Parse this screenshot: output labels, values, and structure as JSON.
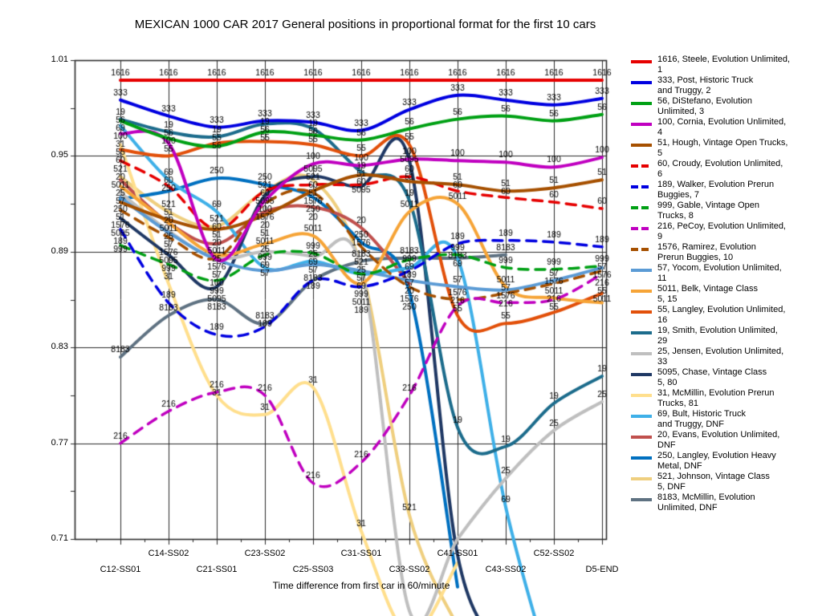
{
  "chart_data": {
    "type": "line",
    "title": "MEXICAN 1000 CAR 2017  General positions in proportional format for the first 10 cars",
    "xlabel": "Time difference from first car in 60/minute",
    "categories": [
      "C12-SS01",
      "C14-SS02",
      "C21-SS01",
      "C23-SS02",
      "C25-SS03",
      "C31-SS01",
      "C33-SS02",
      "C41-SS01",
      "C43-SS02",
      "C52-SS02",
      "D5-END"
    ],
    "ylim": [
      0.71,
      1.01
    ],
    "yticks": [
      1.01,
      0.95,
      0.89,
      0.83,
      0.77,
      0.71
    ],
    "grid": true,
    "legend_position": "right",
    "series": [
      {
        "name": "1616",
        "legend": [
          "1616, Steele, Evolution Unlimited,",
          "1"
        ],
        "color": "#e60000",
        "dash": false,
        "values": [
          0.9975,
          0.9975,
          0.9975,
          0.9975,
          0.9975,
          0.9975,
          0.9975,
          0.9975,
          0.9975,
          0.9975,
          0.9975
        ]
      },
      {
        "name": "333",
        "legend": [
          "333, Post, Historic Truck",
          "and Truggy, 2"
        ],
        "color": "#0000e0",
        "dash": false,
        "values": [
          0.985,
          0.975,
          0.968,
          0.972,
          0.971,
          0.966,
          0.979,
          0.988,
          0.985,
          0.982,
          0.986
        ]
      },
      {
        "name": "56",
        "legend": [
          "56, DiStefano, Evolution",
          "Unlimited, 3"
        ],
        "color": "#00a014",
        "dash": false,
        "values": [
          0.972,
          0.961,
          0.956,
          0.965,
          0.963,
          0.96,
          0.967,
          0.973,
          0.975,
          0.972,
          0.976
        ]
      },
      {
        "name": "100",
        "legend": [
          "100, Cornia, Evolution Unlimited,",
          "4"
        ],
        "color": "#c000c0",
        "dash": false,
        "values": [
          0.964,
          0.958,
          0.885,
          0.922,
          0.945,
          0.944,
          0.948,
          0.947,
          0.946,
          0.943,
          0.949
        ]
      },
      {
        "name": "51",
        "legend": [
          "51, Hough, Vintage Open Trucks,",
          "5"
        ],
        "color": "#a65000",
        "dash": false,
        "values": [
          0.921,
          0.91,
          0.904,
          0.913,
          0.928,
          0.938,
          0.934,
          0.932,
          0.928,
          0.93,
          0.935
        ]
      },
      {
        "name": "60",
        "legend": [
          "60, Croudy, Evolution Unlimited,",
          "6"
        ],
        "color": "#e60000",
        "dash": true,
        "values": [
          0.947,
          0.931,
          0.904,
          0.928,
          0.932,
          0.932,
          0.937,
          0.928,
          0.924,
          0.921,
          0.917
        ]
      },
      {
        "name": "189",
        "legend": [
          "189, Walker, Evolution Prerun",
          "Buggies, 7"
        ],
        "color": "#0000e0",
        "dash": true,
        "values": [
          0.904,
          0.858,
          0.838,
          0.843,
          0.872,
          0.868,
          0.878,
          0.895,
          0.897,
          0.896,
          0.893
        ]
      },
      {
        "name": "999",
        "legend": [
          "999, Gable, Vintage Open",
          "Trucks, 8"
        ],
        "color": "#00a014",
        "dash": true,
        "values": [
          0.894,
          0.882,
          0.872,
          0.888,
          0.889,
          0.876,
          0.885,
          0.888,
          0.88,
          0.879,
          0.881
        ]
      },
      {
        "name": "216",
        "legend": [
          "216, PeCoy, Evolution Unlimited,",
          "9"
        ],
        "color": "#c000c0",
        "dash": true,
        "values": [
          0.77,
          0.79,
          0.802,
          0.8,
          0.745,
          0.758,
          0.8,
          0.856,
          0.858,
          0.86,
          0.876
        ]
      },
      {
        "name": "1576",
        "legend": [
          "1576, Ramirez, Evolution",
          "Prerun Buggies, 10"
        ],
        "color": "#a65000",
        "dash": true,
        "values": [
          0.916,
          0.899,
          0.886,
          0.92,
          0.927,
          0.893,
          0.868,
          0.86,
          0.864,
          0.87,
          0.878
        ]
      },
      {
        "name": "57",
        "legend": [
          "57, Yocom, Evolution Unlimited,",
          "11"
        ],
        "color": "#5b9bd5",
        "dash": false,
        "values": [
          0.924,
          0.902,
          0.885,
          0.878,
          0.882,
          0.878,
          0.872,
          0.868,
          0.866,
          0.872,
          0.88
        ]
      },
      {
        "name": "5011",
        "legend": [
          "5011, Belk, Vintage Class",
          "5, 15"
        ],
        "color": "#f6a437",
        "dash": false,
        "values": [
          0.931,
          0.908,
          0.888,
          0.895,
          0.9,
          0.87,
          0.915,
          0.92,
          0.868,
          0.861,
          0.858
        ]
      },
      {
        "name": "55",
        "legend": [
          "55, Langley, Evolution Unlimited,",
          "16"
        ],
        "color": "#e2500a",
        "dash": false,
        "values": [
          0.954,
          0.95,
          0.958,
          0.959,
          0.957,
          0.95,
          0.957,
          0.85,
          0.845,
          0.852,
          0.864
        ]
      },
      {
        "name": "19",
        "legend": [
          "19, Smith, Evolution Unlimited,",
          "29"
        ],
        "color": "#1c6c8c",
        "dash": false,
        "values": [
          0.973,
          0.965,
          0.962,
          0.97,
          0.967,
          0.94,
          0.922,
          0.78,
          0.768,
          0.795,
          0.812
        ]
      },
      {
        "name": "25",
        "legend": [
          "25, Jensen, Evolution Unlimited,",
          "33"
        ],
        "color": "#bfbfbf",
        "dash": false,
        "values": [
          0.927,
          0.903,
          0.886,
          0.89,
          0.887,
          0.88,
          0.665,
          0.71,
          0.748,
          0.778,
          0.796
        ]
      },
      {
        "name": "5095",
        "legend": [
          "5095, Chase, Vintage Class",
          "5, 80"
        ],
        "color": "#1f3864",
        "dash": false,
        "values": [
          0.911,
          0.888,
          0.868,
          0.925,
          0.937,
          0.931,
          0.947,
          0.7,
          0.64,
          null,
          null
        ]
      },
      {
        "name": "31",
        "legend": [
          "31, McMillin, Evolution Prerun",
          "Trucks, 81"
        ],
        "color": "#ffdf8d",
        "dash": false,
        "values": [
          0.957,
          0.87,
          0.8,
          0.788,
          0.805,
          0.715,
          0.65,
          0.695,
          null,
          null,
          null
        ]
      },
      {
        "name": "69",
        "legend": [
          "69, Bult, Historic Truck",
          "and Truggy, DNF"
        ],
        "color": "#3fb0e8",
        "dash": false,
        "values": [
          0.969,
          0.935,
          0.915,
          0.88,
          0.884,
          0.876,
          0.88,
          0.886,
          0.73,
          0.62,
          null
        ]
      },
      {
        "name": "20",
        "legend": [
          "20, Evans, Evolution Unlimited,",
          "DNF"
        ],
        "color": "#c0504d",
        "dash": false,
        "values": [
          0.935,
          0.908,
          0.895,
          0.915,
          0.918,
          0.905,
          0.87,
          null,
          null,
          null,
          null
        ]
      },
      {
        "name": "250",
        "legend": [
          "250, Langley, Evolution Heavy",
          "Metal, DNF"
        ],
        "color": "#0070c0",
        "dash": false,
        "values": [
          0.923,
          0.928,
          0.936,
          0.932,
          0.924,
          0.896,
          0.865,
          0.68,
          null,
          null,
          null
        ]
      },
      {
        "name": "521",
        "legend": [
          "521, Johnson, Vintage Class",
          "5, DNF"
        ],
        "color": "#efcf7f",
        "dash": false,
        "values": [
          0.937,
          0.915,
          0.906,
          0.928,
          0.935,
          0.88,
          0.725,
          0.655,
          null,
          null,
          null
        ]
      },
      {
        "name": "8183",
        "legend": [
          "8183, McMillin, Evolution",
          "Unlimited, DNF"
        ],
        "color": "#5f7282",
        "dash": false,
        "values": [
          0.824,
          0.85,
          0.86,
          0.845,
          0.872,
          0.884,
          0.886,
          0.886,
          0.888,
          null,
          null
        ]
      }
    ]
  }
}
